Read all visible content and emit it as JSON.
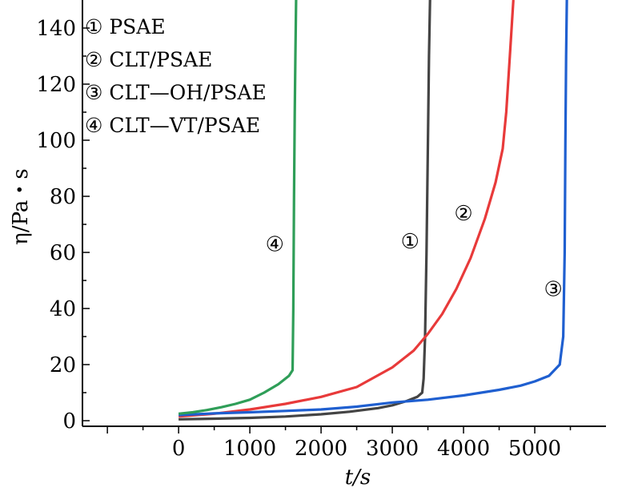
{
  "chart_data": {
    "type": "line",
    "xlabel": "t/s",
    "ylabel": "η/Pa・s",
    "xlim": [
      -1350,
      6000
    ],
    "ylim": [
      -2,
      150
    ],
    "x_ticks": [
      0,
      1000,
      2000,
      3000,
      4000,
      5000
    ],
    "x_tick_labels": [
      "0",
      "1000",
      "2000",
      "3000",
      "4000",
      "5000"
    ],
    "y_ticks": [
      0,
      20,
      40,
      60,
      80,
      100,
      120,
      140
    ],
    "y_tick_labels": [
      "0",
      "20",
      "40",
      "60",
      "80",
      "100",
      "120",
      "140"
    ],
    "legend": [
      {
        "marker": "①",
        "text": "PSAE"
      },
      {
        "marker": "②",
        "text": "CLT/PSAE"
      },
      {
        "marker": "③",
        "text": "CLT—OH/PSAE"
      },
      {
        "marker": "④",
        "text": "CLT—VT/PSAE"
      }
    ],
    "legend_position": "top-left",
    "series": [
      {
        "id": "1",
        "color": "#444444",
        "label": "①",
        "label_x": 3250,
        "label_y": 64,
        "x": [
          0,
          500,
          1000,
          1500,
          2000,
          2400,
          2800,
          3000,
          3200,
          3350,
          3420,
          3440,
          3460,
          3480,
          3500,
          3515,
          3530
        ],
        "y": [
          0.5,
          0.7,
          1,
          1.5,
          2.3,
          3.2,
          4.5,
          5.5,
          7,
          8.5,
          10,
          15,
          30,
          60,
          100,
          130,
          150
        ]
      },
      {
        "id": "2",
        "color": "#e83a3a",
        "label": "②",
        "label_x": 4000,
        "label_y": 74,
        "x": [
          0,
          500,
          1000,
          1500,
          2000,
          2500,
          3000,
          3300,
          3500,
          3700,
          3900,
          4100,
          4300,
          4450,
          4550,
          4600,
          4650,
          4700
        ],
        "y": [
          1.5,
          2.5,
          4,
          6,
          8.5,
          12,
          19,
          25,
          31,
          38,
          47,
          58,
          72,
          85,
          97,
          110,
          130,
          150
        ]
      },
      {
        "id": "3",
        "color": "#1f5fd0",
        "label": "③",
        "label_x": 5260,
        "label_y": 47,
        "x": [
          0,
          500,
          1000,
          1500,
          2000,
          2500,
          3000,
          3500,
          4000,
          4500,
          4800,
          5000,
          5200,
          5350,
          5400,
          5420,
          5430,
          5440,
          5450
        ],
        "y": [
          2,
          2.6,
          3,
          3.5,
          4,
          5,
          6.5,
          7.5,
          9,
          11,
          12.5,
          14,
          16,
          20,
          30,
          60,
          100,
          130,
          150
        ]
      },
      {
        "id": "4",
        "color": "#2f9e58",
        "label": "④",
        "label_x": 1350,
        "label_y": 63,
        "x": [
          0,
          200,
          400,
          600,
          800,
          1000,
          1200,
          1400,
          1550,
          1600,
          1610,
          1620,
          1630,
          1640,
          1650
        ],
        "y": [
          2.5,
          3,
          3.8,
          4.8,
          6,
          7.5,
          10,
          13,
          16,
          18,
          40,
          80,
          110,
          130,
          150
        ]
      }
    ]
  }
}
